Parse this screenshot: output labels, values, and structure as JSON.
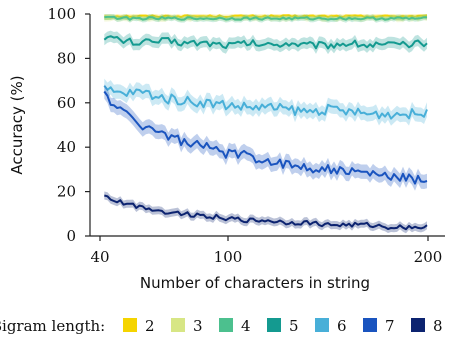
{
  "chart_data": {
    "type": "line",
    "title": "",
    "xlabel": "Number of characters in string",
    "ylabel": "Accuracy (%)",
    "xlim": [
      40,
      200
    ],
    "ylim": [
      0,
      100
    ],
    "xticks": [
      40,
      100,
      200
    ],
    "yticks": [
      0,
      20,
      40,
      60,
      80,
      100
    ],
    "grid": false,
    "legend": {
      "title": "Bigram length:",
      "placement": "bottom",
      "entries": [
        "2",
        "3",
        "4",
        "5",
        "6",
        "7",
        "8"
      ]
    },
    "x": [
      42,
      50,
      60,
      70,
      80,
      90,
      100,
      110,
      120,
      130,
      140,
      150,
      160,
      170,
      180,
      190,
      200
    ],
    "series": [
      {
        "name": "2",
        "color": "#f5d400",
        "values": [
          99,
          99,
          99,
          99,
          99,
          99,
          99,
          99,
          99,
          99,
          99,
          99,
          99,
          99,
          99,
          99,
          99
        ]
      },
      {
        "name": "3",
        "color": "#d7e685",
        "values": [
          98,
          98,
          98,
          98,
          98,
          98,
          98,
          98,
          98,
          98,
          98,
          98,
          98,
          98,
          98,
          98,
          98
        ]
      },
      {
        "name": "4",
        "color": "#4cc08e",
        "values": [
          99,
          98,
          98,
          98,
          98,
          98,
          98,
          98,
          98,
          98,
          98,
          98,
          98,
          98,
          98,
          98,
          98
        ]
      },
      {
        "name": "5",
        "color": "#149a90",
        "values": [
          90,
          88,
          87,
          88,
          87,
          87,
          86,
          87,
          86,
          87,
          86,
          86,
          87,
          86,
          86,
          86,
          87
        ]
      },
      {
        "name": "6",
        "color": "#48afd8",
        "values": [
          66,
          64,
          65,
          62,
          61,
          60,
          59,
          58,
          58,
          57,
          56,
          57,
          56,
          55,
          55,
          55,
          55
        ]
      },
      {
        "name": "7",
        "color": "#1a54bf",
        "values": [
          64,
          56,
          50,
          46,
          42,
          40,
          37,
          36,
          34,
          32,
          31,
          30,
          29,
          28,
          27,
          26,
          25
        ]
      },
      {
        "name": "8",
        "color": "#0c2370",
        "values": [
          18,
          15,
          13,
          11,
          10,
          9,
          8,
          7,
          7,
          6,
          6,
          5,
          5,
          5,
          4,
          4,
          4
        ]
      }
    ]
  }
}
